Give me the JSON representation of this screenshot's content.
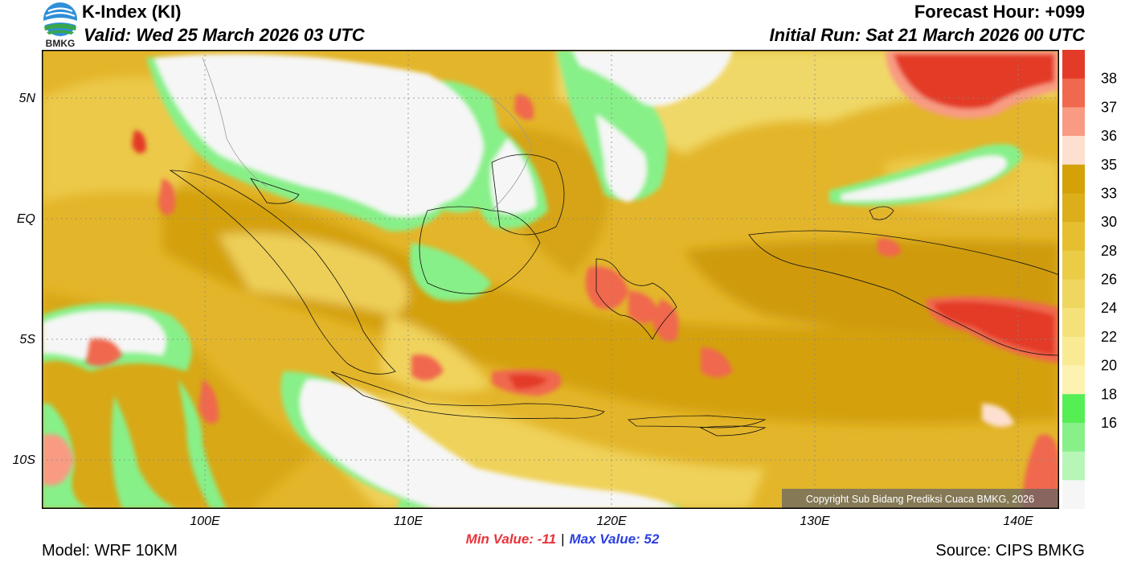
{
  "header": {
    "title": "K-Index (KI)",
    "valid": "Valid: Wed 25 March 2026 03 UTC",
    "forecast_hour": "Forecast Hour: +099",
    "initial_run": "Initial Run: Sat 21 March 2026 00 UTC",
    "logo_text": "BMKG"
  },
  "map": {
    "lat_labels": [
      "5N",
      "EQ",
      "5S",
      "10S"
    ],
    "lon_labels": [
      "100E",
      "110E",
      "120E",
      "130E",
      "140E"
    ],
    "copyright": "Copyright Sub Bidang Prediksi Cuaca BMKG, 2026"
  },
  "colorbar": {
    "ticks": [
      "38",
      "37",
      "36",
      "35",
      "33",
      "30",
      "28",
      "26",
      "24",
      "22",
      "20",
      "18",
      "16"
    ],
    "colors": [
      "#e33b27",
      "#f0684d",
      "#f89b82",
      "#fde0cf",
      "#d4a109",
      "#dbae1a",
      "#e5bf30",
      "#ebcc46",
      "#efd660",
      "#f4e17a",
      "#f9ea93",
      "#fcf2b1",
      "#55ee55",
      "#88f088",
      "#b8f6b8",
      "#f6f6f6"
    ]
  },
  "footer": {
    "min_label": "Min Value: -11",
    "separator": "|",
    "max_label": "Max Value:  52",
    "model": "Model: WRF 10KM",
    "source": "Source: CIPS BMKG"
  }
}
